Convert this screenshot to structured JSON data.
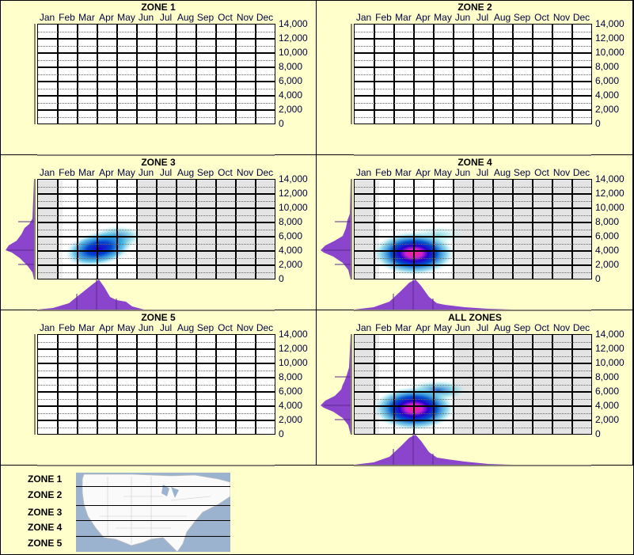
{
  "months": [
    "Jan",
    "Feb",
    "Mar",
    "Apr",
    "May",
    "Jun",
    "Jul",
    "Aug",
    "Sep",
    "Oct",
    "Nov",
    "Dec"
  ],
  "yticks": [
    "14,000",
    "12,000",
    "10,000",
    "8,000",
    "6,000",
    "4,000",
    "2,000",
    "0"
  ],
  "panels": [
    {
      "title": "ZONE 1"
    },
    {
      "title": "ZONE 2"
    },
    {
      "title": "ZONE 3"
    },
    {
      "title": "ZONE 4"
    },
    {
      "title": "ZONE 5"
    },
    {
      "title": "ALL ZONES"
    }
  ],
  "legend": {
    "zones": [
      "ZONE 1",
      "ZONE 2",
      "ZONE 3",
      "ZONE 4",
      "ZONE 5"
    ]
  },
  "colors": {
    "background": "#ffffcc",
    "kde": "#8b44cc",
    "heat_low": "#b8eef0",
    "heat_mid": "#0044cc",
    "heat_high": "#ff2288",
    "shade": "#e4e4e4"
  },
  "chart_data": [
    {
      "type": "heatmap",
      "title": "ZONE 1",
      "xlabel": "",
      "ylabel": "",
      "categories": [
        "Jan",
        "Feb",
        "Mar",
        "Apr",
        "May",
        "Jun",
        "Jul",
        "Aug",
        "Sep",
        "Oct",
        "Nov",
        "Dec"
      ],
      "ylim": [
        0,
        14000
      ],
      "yticks": [
        0,
        2000,
        4000,
        6000,
        8000,
        10000,
        12000,
        14000
      ],
      "grid": true,
      "data": "none"
    },
    {
      "type": "heatmap",
      "title": "ZONE 2",
      "xlabel": "",
      "ylabel": "",
      "categories": [
        "Jan",
        "Feb",
        "Mar",
        "Apr",
        "May",
        "Jun",
        "Jul",
        "Aug",
        "Sep",
        "Oct",
        "Nov",
        "Dec"
      ],
      "ylim": [
        0,
        14000
      ],
      "yticks": [
        0,
        2000,
        4000,
        6000,
        8000,
        10000,
        12000,
        14000
      ],
      "grid": true,
      "data": "none"
    },
    {
      "type": "heatmap",
      "title": "ZONE 3",
      "ylim": [
        0,
        14000
      ],
      "categories": [
        "Jan",
        "Feb",
        "Mar",
        "Apr",
        "May",
        "Jun",
        "Jul",
        "Aug",
        "Sep",
        "Oct",
        "Nov",
        "Dec"
      ],
      "active_months": [
        "Feb",
        "Mar",
        "Apr",
        "May"
      ],
      "peaks": [
        {
          "month": "Mar-Apr",
          "elevation": 4000,
          "intensity": "high"
        },
        {
          "month": "May",
          "elevation": 6500,
          "intensity": "medium"
        }
      ],
      "month_density_peak": "Apr",
      "elevation_density_peak": 4000
    },
    {
      "type": "heatmap",
      "title": "ZONE 4",
      "ylim": [
        0,
        14000
      ],
      "categories": [
        "Jan",
        "Feb",
        "Mar",
        "Apr",
        "May",
        "Jun",
        "Jul",
        "Aug",
        "Sep",
        "Oct",
        "Nov",
        "Dec"
      ],
      "active_months": [
        "Feb",
        "Mar",
        "Apr",
        "May"
      ],
      "peaks": [
        {
          "month": "Mar-Apr",
          "elevation": 3500,
          "intensity": "very high"
        },
        {
          "month": "May-Jun",
          "elevation": 6500,
          "intensity": "low"
        }
      ],
      "month_density_peak": "Apr",
      "elevation_density_peak": 3500
    },
    {
      "type": "heatmap",
      "title": "ZONE 5",
      "ylim": [
        0,
        14000
      ],
      "categories": [
        "Jan",
        "Feb",
        "Mar",
        "Apr",
        "May",
        "Jun",
        "Jul",
        "Aug",
        "Sep",
        "Oct",
        "Nov",
        "Dec"
      ],
      "grid": true,
      "data": "none"
    },
    {
      "type": "heatmap",
      "title": "ALL ZONES",
      "ylim": [
        0,
        14000
      ],
      "categories": [
        "Jan",
        "Feb",
        "Mar",
        "Apr",
        "May",
        "Jun",
        "Jul",
        "Aug",
        "Sep",
        "Oct",
        "Nov",
        "Dec"
      ],
      "active_months": [
        "Feb",
        "Mar",
        "Apr",
        "May"
      ],
      "peaks": [
        {
          "month": "Mar-Apr",
          "elevation": 3500,
          "intensity": "very high"
        },
        {
          "month": "May",
          "elevation": 6500,
          "intensity": "medium"
        }
      ],
      "month_density_peak": "Apr",
      "elevation_density_peak": 3500
    }
  ]
}
